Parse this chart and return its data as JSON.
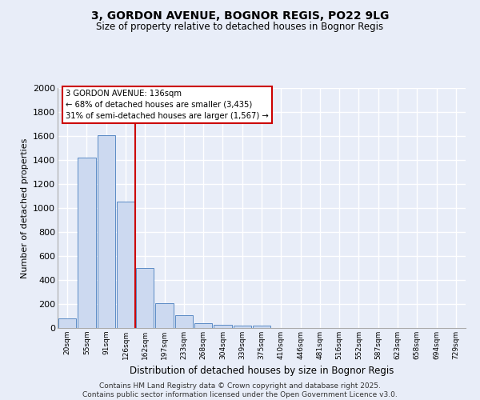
{
  "title_line1": "3, GORDON AVENUE, BOGNOR REGIS, PO22 9LG",
  "title_line2": "Size of property relative to detached houses in Bognor Regis",
  "xlabel": "Distribution of detached houses by size in Bognor Regis",
  "ylabel": "Number of detached properties",
  "bin_labels": [
    "20sqm",
    "55sqm",
    "91sqm",
    "126sqm",
    "162sqm",
    "197sqm",
    "233sqm",
    "268sqm",
    "304sqm",
    "339sqm",
    "375sqm",
    "410sqm",
    "446sqm",
    "481sqm",
    "516sqm",
    "552sqm",
    "587sqm",
    "623sqm",
    "658sqm",
    "694sqm",
    "729sqm"
  ],
  "bar_heights": [
    80,
    1420,
    1610,
    1055,
    500,
    205,
    105,
    40,
    30,
    20,
    20,
    0,
    0,
    0,
    0,
    0,
    0,
    0,
    0,
    0,
    0
  ],
  "bar_color": "#ccd9f0",
  "bar_edge_color": "#5b8bc5",
  "annotation_text": "3 GORDON AVENUE: 136sqm\n← 68% of detached houses are smaller (3,435)\n31% of semi-detached houses are larger (1,567) →",
  "annotation_box_color": "#ffffff",
  "annotation_box_edge": "#cc0000",
  "vline_color": "#cc0000",
  "vline_x_index": 3.5,
  "ylim": [
    0,
    2000
  ],
  "yticks": [
    0,
    200,
    400,
    600,
    800,
    1000,
    1200,
    1400,
    1600,
    1800,
    2000
  ],
  "background_color": "#e8edf8",
  "grid_color": "#ffffff",
  "footnote": "Contains HM Land Registry data © Crown copyright and database right 2025.\nContains public sector information licensed under the Open Government Licence v3.0.",
  "n_bins": 21
}
